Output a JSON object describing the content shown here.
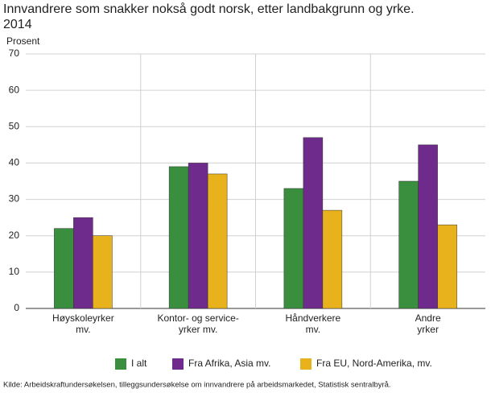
{
  "chart_data": {
    "type": "bar",
    "title": "Innvandrere som snakker nokså godt norsk, etter landbakgrunn og yrke. 2014",
    "y_label": "Prosent",
    "categories": [
      "Høyskoleyrker\nmv.",
      "Kontor- og service-\nyrker mv.",
      "Håndverkere\nmv.",
      "Andre\nyrker"
    ],
    "series": [
      {
        "name": "I alt",
        "color": "#3a8f3e",
        "values": [
          22,
          39,
          33,
          35
        ]
      },
      {
        "name": "Fra Afrika, Asia mv.",
        "color": "#6f2b8b",
        "values": [
          25,
          40,
          47,
          45
        ]
      },
      {
        "name": "Fra EU, Nord-Amerika, mv.",
        "color": "#e8b21d",
        "values": [
          20,
          37,
          27,
          23
        ]
      }
    ],
    "ylim": [
      0,
      70
    ],
    "yticks": [
      0,
      10,
      20,
      30,
      40,
      50,
      60,
      70
    ],
    "grid": true,
    "source": "Kilde: Arbeidskraftundersøkelsen, tilleggsundersøkelse om innvandrere på arbeidsmarkedet, Statistisk sentralbyrå."
  }
}
